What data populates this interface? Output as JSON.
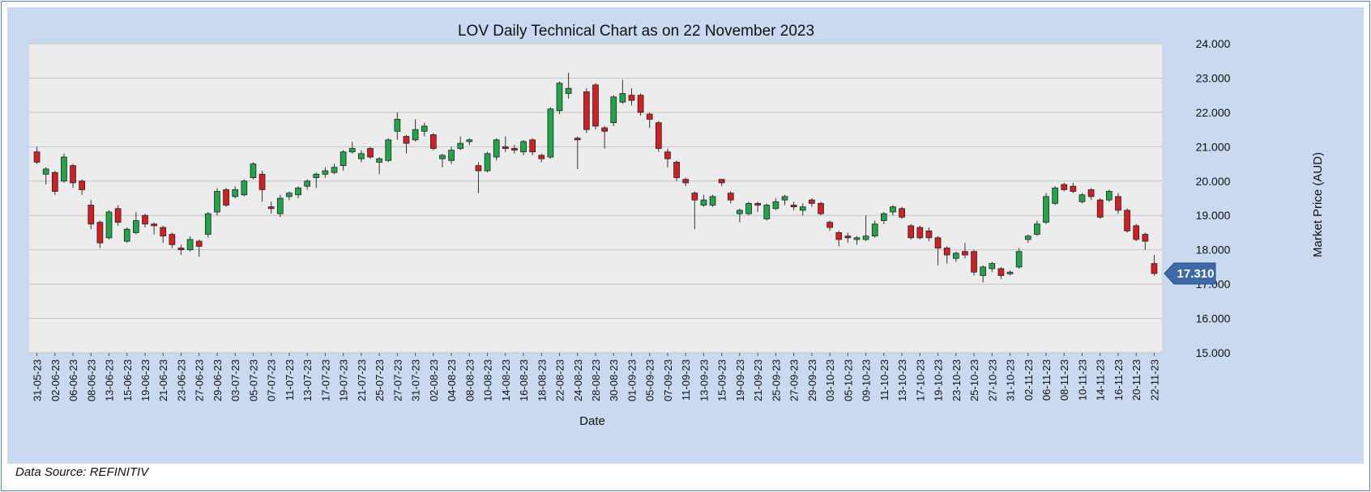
{
  "source_note": "Data Source: REFINITIV",
  "colors": {
    "up": "#1fa64a",
    "down": "#d11f24",
    "frame_bg": "#c9d9ef",
    "plot_bg": "#ececec",
    "grid": "#c4c4c4",
    "price_tag": "#3e6aa8"
  },
  "chart_data": {
    "type": "candlestick",
    "title": "LOV Daily Technical Chart as on 22 November 2023",
    "xlabel": "Date",
    "ylabel": "Market Price (AUD)",
    "ylim": [
      15,
      24
    ],
    "grid": true,
    "legend": "none",
    "yticks": [
      "15.000",
      "16.000",
      "17.000",
      "18.000",
      "19.000",
      "20.000",
      "21.000",
      "22.000",
      "23.000",
      "24.000"
    ],
    "last_price_label": "17.310",
    "last_price": 17.31,
    "xtick_labels": [
      "31-05-23",
      "02-06-23",
      "06-06-23",
      "08-06-23",
      "13-06-23",
      "15-06-23",
      "19-06-23",
      "21-06-23",
      "23-06-23",
      "27-06-23",
      "29-06-23",
      "03-07-23",
      "05-07-23",
      "07-07-23",
      "11-07-23",
      "13-07-23",
      "17-07-23",
      "19-07-23",
      "21-07-23",
      "25-07-23",
      "27-07-23",
      "31-07-23",
      "02-08-23",
      "04-08-23",
      "08-08-23",
      "10-08-23",
      "14-08-23",
      "16-08-23",
      "18-08-23",
      "22-08-23",
      "24-08-23",
      "28-08-23",
      "30-08-23",
      "01-09-23",
      "05-09-23",
      "07-09-23",
      "11-09-23",
      "13-09-23",
      "15-09-23",
      "19-09-23",
      "21-09-23",
      "25-09-23",
      "27-09-23",
      "29-09-23",
      "03-10-23",
      "05-10-23",
      "09-10-23",
      "11-10-23",
      "13-10-23",
      "17-10-23",
      "19-10-23",
      "23-10-23",
      "25-10-23",
      "27-10-23",
      "31-10-23",
      "02-11-23",
      "06-11-23",
      "08-11-23",
      "10-11-23",
      "14-11-23",
      "16-11-23",
      "20-11-23",
      "22-11-23"
    ],
    "candles": [
      [
        20.85,
        20.55,
        21.0,
        20.5
      ],
      [
        20.2,
        20.35,
        20.4,
        19.9
      ],
      [
        20.25,
        19.7,
        20.3,
        19.6
      ],
      [
        20.0,
        20.7,
        20.8,
        19.95
      ],
      [
        20.45,
        19.95,
        20.5,
        19.8
      ],
      [
        20.0,
        19.75,
        20.05,
        19.6
      ],
      [
        19.3,
        18.75,
        19.45,
        18.6
      ],
      [
        18.8,
        18.2,
        18.85,
        18.05
      ],
      [
        18.35,
        19.1,
        19.15,
        18.3
      ],
      [
        19.2,
        18.8,
        19.3,
        18.7
      ],
      [
        18.25,
        18.6,
        18.65,
        18.2
      ],
      [
        18.5,
        18.85,
        19.1,
        18.45
      ],
      [
        19.0,
        18.75,
        19.05,
        18.65
      ],
      [
        18.75,
        18.7,
        18.8,
        18.45
      ],
      [
        18.65,
        18.4,
        18.7,
        18.2
      ],
      [
        18.45,
        18.15,
        18.5,
        18.05
      ],
      [
        18.05,
        18.0,
        18.15,
        17.85
      ],
      [
        18.0,
        18.3,
        18.4,
        17.95
      ],
      [
        18.25,
        18.1,
        18.3,
        17.8
      ],
      [
        18.45,
        19.05,
        19.1,
        18.35
      ],
      [
        19.1,
        19.7,
        19.8,
        19.0
      ],
      [
        19.75,
        19.3,
        19.8,
        19.25
      ],
      [
        19.55,
        19.75,
        19.85,
        19.5
      ],
      [
        19.6,
        20.0,
        20.05,
        19.55
      ],
      [
        20.1,
        20.5,
        20.55,
        20.05
      ],
      [
        20.2,
        19.75,
        20.3,
        19.4
      ],
      [
        19.25,
        19.2,
        19.4,
        19.05
      ],
      [
        19.05,
        19.5,
        19.6,
        18.95
      ],
      [
        19.55,
        19.65,
        19.7,
        19.45
      ],
      [
        19.6,
        19.8,
        19.85,
        19.5
      ],
      [
        19.85,
        20.0,
        20.05,
        19.75
      ],
      [
        20.1,
        20.2,
        20.25,
        19.8
      ],
      [
        20.2,
        20.3,
        20.4,
        20.1
      ],
      [
        20.25,
        20.4,
        20.5,
        20.2
      ],
      [
        20.45,
        20.85,
        20.9,
        20.3
      ],
      [
        20.85,
        20.95,
        21.15,
        20.8
      ],
      [
        20.65,
        20.8,
        20.9,
        20.55
      ],
      [
        20.95,
        20.7,
        21.0,
        20.65
      ],
      [
        20.55,
        20.65,
        20.7,
        20.2
      ],
      [
        20.6,
        21.2,
        21.25,
        20.55
      ],
      [
        21.45,
        21.8,
        22.0,
        21.2
      ],
      [
        21.3,
        21.1,
        21.35,
        20.8
      ],
      [
        21.2,
        21.5,
        21.8,
        21.15
      ],
      [
        21.45,
        21.6,
        21.7,
        21.3
      ],
      [
        21.35,
        20.95,
        21.4,
        20.9
      ],
      [
        20.65,
        20.75,
        20.8,
        20.4
      ],
      [
        20.6,
        20.9,
        21.0,
        20.5
      ],
      [
        20.95,
        21.1,
        21.3,
        20.9
      ],
      [
        21.15,
        21.2,
        21.25,
        21.05
      ],
      [
        20.45,
        20.3,
        20.55,
        19.65
      ],
      [
        20.3,
        20.8,
        20.85,
        20.25
      ],
      [
        20.7,
        21.2,
        21.25,
        20.6
      ],
      [
        21.0,
        20.95,
        21.3,
        20.85
      ],
      [
        20.95,
        20.9,
        21.05,
        20.8
      ],
      [
        20.85,
        21.15,
        21.2,
        20.75
      ],
      [
        21.2,
        20.85,
        21.25,
        20.75
      ],
      [
        20.75,
        20.65,
        20.8,
        20.55
      ],
      [
        20.7,
        22.1,
        22.15,
        20.65
      ],
      [
        22.05,
        22.85,
        22.9,
        21.95
      ],
      [
        22.55,
        22.7,
        23.15,
        22.4
      ],
      [
        21.25,
        21.2,
        21.3,
        20.35
      ],
      [
        22.6,
        21.5,
        22.7,
        21.4
      ],
      [
        22.8,
        21.6,
        22.85,
        21.5
      ],
      [
        21.55,
        21.45,
        21.6,
        20.95
      ],
      [
        21.7,
        22.45,
        22.5,
        21.6
      ],
      [
        22.3,
        22.55,
        22.95,
        22.25
      ],
      [
        22.5,
        22.35,
        22.7,
        22.2
      ],
      [
        22.5,
        22.0,
        22.55,
        21.9
      ],
      [
        21.95,
        21.8,
        22.0,
        21.55
      ],
      [
        21.7,
        20.95,
        21.75,
        20.85
      ],
      [
        20.85,
        20.65,
        20.95,
        20.4
      ],
      [
        20.55,
        20.1,
        20.6,
        20.0
      ],
      [
        20.05,
        19.95,
        20.1,
        19.85
      ],
      [
        19.65,
        19.45,
        19.7,
        18.6
      ],
      [
        19.3,
        19.45,
        19.6,
        19.25
      ],
      [
        19.3,
        19.55,
        19.6,
        19.25
      ],
      [
        20.05,
        19.95,
        20.05,
        19.85
      ],
      [
        19.65,
        19.45,
        19.7,
        19.35
      ],
      [
        19.05,
        19.15,
        19.2,
        18.8
      ],
      [
        19.05,
        19.35,
        19.4,
        19.0
      ],
      [
        19.35,
        19.3,
        19.4,
        19.1
      ],
      [
        18.9,
        19.3,
        19.35,
        18.85
      ],
      [
        19.2,
        19.4,
        19.5,
        19.15
      ],
      [
        19.45,
        19.55,
        19.6,
        19.3
      ],
      [
        19.3,
        19.25,
        19.4,
        19.15
      ],
      [
        19.15,
        19.25,
        19.35,
        19.0
      ],
      [
        19.45,
        19.35,
        19.5,
        19.25
      ],
      [
        19.35,
        19.05,
        19.4,
        19.0
      ],
      [
        18.8,
        18.65,
        18.85,
        18.55
      ],
      [
        18.5,
        18.3,
        18.55,
        18.1
      ],
      [
        18.4,
        18.35,
        18.5,
        18.2
      ],
      [
        18.3,
        18.35,
        18.4,
        18.15
      ],
      [
        18.3,
        18.4,
        19.0,
        18.25
      ],
      [
        18.4,
        18.75,
        18.85,
        18.35
      ],
      [
        18.85,
        19.05,
        19.1,
        18.75
      ],
      [
        19.1,
        19.25,
        19.3,
        19.0
      ],
      [
        19.2,
        18.95,
        19.25,
        18.9
      ],
      [
        18.7,
        18.35,
        18.75,
        18.3
      ],
      [
        18.65,
        18.35,
        18.7,
        18.3
      ],
      [
        18.55,
        18.35,
        18.65,
        18.25
      ],
      [
        18.35,
        18.05,
        18.4,
        17.55
      ],
      [
        18.05,
        17.85,
        18.1,
        17.6
      ],
      [
        17.75,
        17.9,
        17.95,
        17.65
      ],
      [
        17.95,
        17.85,
        18.2,
        17.75
      ],
      [
        17.95,
        17.35,
        18.0,
        17.25
      ],
      [
        17.25,
        17.5,
        17.55,
        17.05
      ],
      [
        17.45,
        17.6,
        17.65,
        17.35
      ],
      [
        17.45,
        17.25,
        17.5,
        17.15
      ],
      [
        17.3,
        17.35,
        17.4,
        17.25
      ],
      [
        17.5,
        17.95,
        18.05,
        17.45
      ],
      [
        18.3,
        18.4,
        18.45,
        18.2
      ],
      [
        18.45,
        18.75,
        18.85,
        18.4
      ],
      [
        18.8,
        19.55,
        19.65,
        18.75
      ],
      [
        19.35,
        19.8,
        19.85,
        19.3
      ],
      [
        19.9,
        19.75,
        19.95,
        19.7
      ],
      [
        19.85,
        19.7,
        19.95,
        19.65
      ],
      [
        19.4,
        19.6,
        19.65,
        19.35
      ],
      [
        19.75,
        19.55,
        19.8,
        19.45
      ],
      [
        19.45,
        18.95,
        19.5,
        18.9
      ],
      [
        19.45,
        19.7,
        19.75,
        19.4
      ],
      [
        19.55,
        19.15,
        19.65,
        19.05
      ],
      [
        19.15,
        18.55,
        19.2,
        18.5
      ],
      [
        18.7,
        18.3,
        18.75,
        18.25
      ],
      [
        18.45,
        18.25,
        18.5,
        18.0
      ],
      [
        17.6,
        17.31,
        17.85,
        17.25
      ]
    ]
  }
}
